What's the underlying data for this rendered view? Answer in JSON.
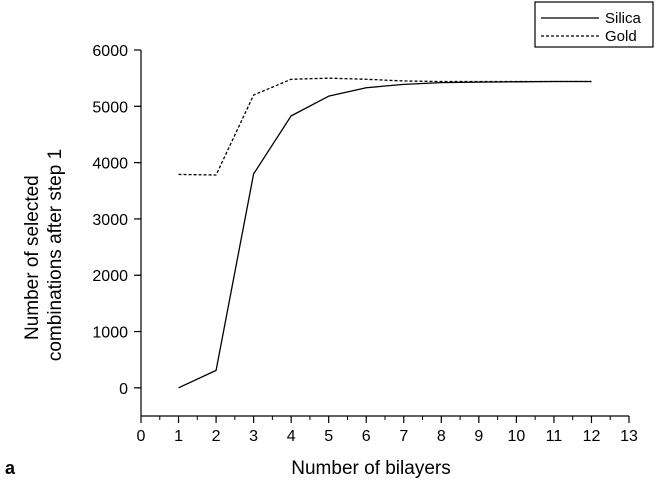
{
  "chart_data": {
    "type": "line",
    "panel_label": "a",
    "title": "",
    "xlabel": "Number of bilayers",
    "ylabel_lines": [
      "Number of selected",
      "combinations after step 1"
    ],
    "xlim": [
      0,
      13
    ],
    "ylim": [
      -500,
      6000
    ],
    "x_ticks": [
      0,
      1,
      2,
      3,
      4,
      5,
      6,
      7,
      8,
      9,
      10,
      11,
      12,
      13
    ],
    "y_ticks": [
      0,
      1000,
      2000,
      3000,
      4000,
      5000,
      6000
    ],
    "grid": false,
    "legend_position": "top-right",
    "series": [
      {
        "name": "Silica",
        "style": "solid",
        "x": [
          1,
          2,
          3,
          4,
          5,
          6,
          7,
          8,
          9,
          10,
          11,
          12
        ],
        "y": [
          0,
          310,
          3800,
          4830,
          5180,
          5330,
          5390,
          5420,
          5430,
          5435,
          5440,
          5440
        ]
      },
      {
        "name": "Gold",
        "style": "dashed",
        "x": [
          1,
          2,
          3,
          4,
          5,
          6,
          7,
          8,
          9,
          10,
          11,
          12
        ],
        "y": [
          3790,
          3780,
          5200,
          5480,
          5500,
          5480,
          5450,
          5440,
          5440,
          5440,
          5440,
          5440
        ]
      }
    ]
  }
}
